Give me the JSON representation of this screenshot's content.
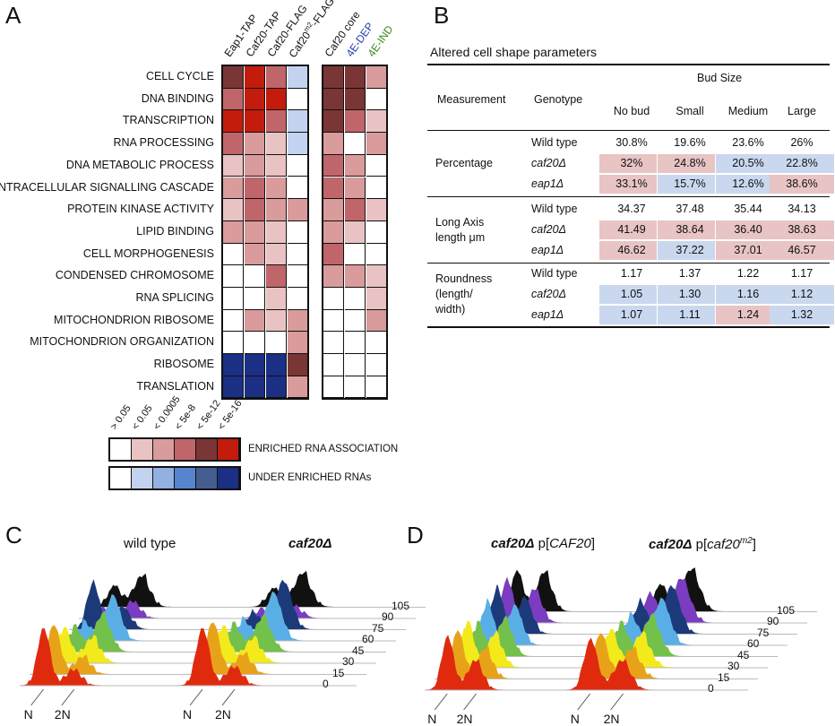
{
  "panels": {
    "A": "A",
    "B": "B",
    "C": "C",
    "D": "D"
  },
  "panelA": {
    "columns": [
      "Eap1-TAP",
      "Caf20-TAP",
      "Caf20-FLAG",
      "Caf20m2-FLAG",
      "Caf20 core",
      "4E-DEP",
      "4E-IND"
    ],
    "column_colors": [
      "#111111",
      "#111111",
      "#111111",
      "#111111",
      "#111111",
      "#2a3fb0",
      "#3a8a1e"
    ],
    "rows": [
      "CELL CYCLE",
      "DNA BINDING",
      "TRANSCRIPTION",
      "RNA PROCESSING",
      "DNA METABOLIC PROCESS",
      "INTRACELLULAR SIGNALLING CASCADE",
      "PROTEIN KINASE ACTIVITY",
      "LIPID BINDING",
      "CELL MORPHOGENESIS",
      "CONDENSED CHROMOSOME",
      "RNA SPLICING",
      "MITOCHONDRION RIBOSOME",
      "MITOCHONDRION ORGANIZATION",
      "RIBOSOME",
      "TRANSLATION"
    ],
    "heatmap_levels_note": "enriched levels 0-5 positive, under-enriched levels negative",
    "heatmap": [
      [
        4,
        5,
        3,
        -1,
        4,
        4,
        2
      ],
      [
        3,
        5,
        5,
        0,
        4,
        4,
        0
      ],
      [
        5,
        5,
        3,
        -1,
        4,
        3,
        1
      ],
      [
        3,
        2,
        1,
        -1,
        2,
        0,
        2
      ],
      [
        1,
        2,
        1,
        0,
        3,
        2,
        0
      ],
      [
        2,
        3,
        2,
        0,
        3,
        2,
        0
      ],
      [
        1,
        3,
        2,
        2,
        2,
        3,
        1
      ],
      [
        2,
        2,
        1,
        0,
        2,
        1,
        0
      ],
      [
        0,
        2,
        1,
        0,
        3,
        0,
        0
      ],
      [
        0,
        0,
        3,
        0,
        2,
        2,
        1
      ],
      [
        0,
        0,
        1,
        0,
        0,
        0,
        1
      ],
      [
        0,
        2,
        1,
        2,
        0,
        0,
        2
      ],
      [
        0,
        0,
        0,
        2,
        0,
        0,
        0
      ],
      [
        -5,
        -5,
        -5,
        4,
        0,
        0,
        0
      ],
      [
        -5,
        -5,
        -5,
        2,
        0,
        0,
        0
      ]
    ],
    "legend": {
      "thresholds": [
        "> 0.05",
        "< 0.05",
        "< 0.0005",
        "< 5e-8",
        "< 5e-12",
        "< 5e-16"
      ],
      "enriched_label": "ENRICHED RNA ASSOCIATION",
      "under_label": "UNDER ENRICHED RNAs",
      "enriched_colors": [
        "#ffffff",
        "#e9c3c3",
        "#d99b9b",
        "#c0656a",
        "#7a3535",
        "#c31c0c"
      ],
      "under_colors": [
        "#ffffff",
        "#c3d2ee",
        "#92b0e0",
        "#5784cf",
        "#455e8f",
        "#1b2f85"
      ]
    }
  },
  "panelB": {
    "title": "Altered cell shape parameters",
    "header": {
      "measurement": "Measurement",
      "genotype": "Genotype",
      "bud_size": "Bud Size",
      "cols": [
        "No bud",
        "Small",
        "Medium",
        "Large"
      ]
    },
    "groups": [
      {
        "measurement": [
          "Percentage"
        ],
        "rows": [
          {
            "genotype": "Wild type",
            "italic": false,
            "values": [
              "30.8%",
              "19.6%",
              "23.6%",
              "26%"
            ],
            "shade": [
              "",
              "",
              "",
              ""
            ]
          },
          {
            "genotype": "caf20Δ",
            "italic": true,
            "values": [
              "32%",
              "24.8%",
              "20.5%",
              "22.8%"
            ],
            "shade": [
              "red",
              "red",
              "blue",
              "blue"
            ]
          },
          {
            "genotype": "eap1Δ",
            "italic": true,
            "values": [
              "33.1%",
              "15.7%",
              "12.6%",
              "38.6%"
            ],
            "shade": [
              "red",
              "blue",
              "blue",
              "red"
            ]
          }
        ]
      },
      {
        "measurement": [
          "Long Axis",
          "length μm"
        ],
        "rows": [
          {
            "genotype": "Wild type",
            "italic": false,
            "values": [
              "34.37",
              "37.48",
              "35.44",
              "34.13"
            ],
            "shade": [
              "",
              "",
              "",
              ""
            ]
          },
          {
            "genotype": "caf20Δ",
            "italic": true,
            "values": [
              "41.49",
              "38.64",
              "36.40",
              "38.63"
            ],
            "shade": [
              "red",
              "red",
              "red",
              "red"
            ]
          },
          {
            "genotype": "eap1Δ",
            "italic": true,
            "values": [
              "46.62",
              "37.22",
              "37.01",
              "46.57"
            ],
            "shade": [
              "red",
              "blue",
              "red",
              "red"
            ]
          }
        ]
      },
      {
        "measurement": [
          "Roundness",
          "(length/",
          "width)"
        ],
        "rows": [
          {
            "genotype": "Wild type",
            "italic": false,
            "values": [
              "1.17",
              "1.37",
              "1.22",
              "1.17"
            ],
            "shade": [
              "",
              "",
              "",
              ""
            ]
          },
          {
            "genotype": "caf20Δ",
            "italic": true,
            "values": [
              "1.05",
              "1.30",
              "1.16",
              "1.12"
            ],
            "shade": [
              "blue",
              "blue",
              "blue",
              "blue"
            ]
          },
          {
            "genotype": "eap1Δ",
            "italic": true,
            "values": [
              "1.07",
              "1.11",
              "1.24",
              "1.32"
            ],
            "shade": [
              "blue",
              "blue",
              "red",
              "blue"
            ]
          }
        ]
      }
    ],
    "shade_colors": {
      "red": "#e8c4c4",
      "blue": "#c9d8ee"
    }
  },
  "panelC": {
    "label_left": "wild type",
    "label_right": "caf20Δ",
    "timepoints": [
      "0",
      "15",
      "30",
      "45",
      "60",
      "75",
      "90",
      "105"
    ],
    "x_ticks": [
      "N",
      "2N"
    ]
  },
  "panelD": {
    "label_left_prefix": "caf20Δ",
    "label_left_mid": " p[",
    "label_left_gene": "CAF20",
    "label_left_end": "]",
    "label_right_prefix": "caf20Δ",
    "label_right_mid": " p[",
    "label_right_gene": "caf20",
    "label_right_sup": "m2",
    "label_right_end": "]",
    "timepoints": [
      "0",
      "15",
      "30",
      "45",
      "60",
      "75",
      "90",
      "105"
    ],
    "x_ticks": [
      "N",
      "2N"
    ]
  },
  "series_colors": [
    "#e02a0e",
    "#e8a21a",
    "#f2ea1a",
    "#73c04a",
    "#5aaee6",
    "#1c3a7a",
    "#7a3cc0",
    "#111111"
  ]
}
